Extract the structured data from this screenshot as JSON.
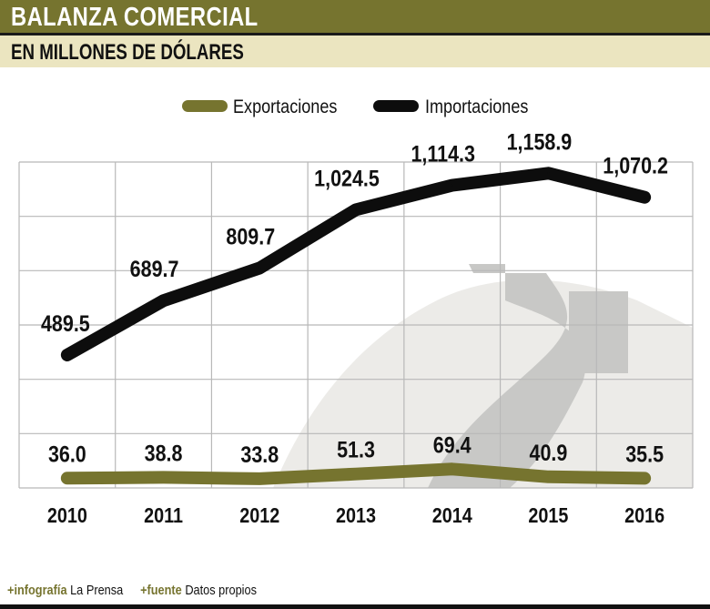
{
  "header": {
    "title": "BALANZA COMERCIAL",
    "subtitle": "EN MILLONES DE DÓLARES"
  },
  "colors": {
    "exports": "#76742f",
    "imports": "#0d0d0d",
    "title_bar": "#76742f",
    "subtitle_bar": "#ebe5c0",
    "grid": "#b8b8b8"
  },
  "chart_data": {
    "type": "line",
    "title": "BALANZA COMERCIAL",
    "subtitle": "EN MILLONES DE DÓLARES",
    "categories": [
      "2010",
      "2011",
      "2012",
      "2013",
      "2014",
      "2015",
      "2016"
    ],
    "series": [
      {
        "name": "Exportaciones",
        "color": "#76742f",
        "values": [
          36.0,
          38.8,
          33.8,
          51.3,
          69.4,
          40.9,
          35.5
        ],
        "labels": [
          "36.0",
          "38.8",
          "33.8",
          "51.3",
          "69.4",
          "40.9",
          "35.5"
        ]
      },
      {
        "name": "Importaciones",
        "color": "#0d0d0d",
        "values": [
          489.5,
          689.7,
          809.7,
          1024.5,
          1114.3,
          1158.9,
          1070.2
        ],
        "labels": [
          "489.5",
          "689.7",
          "809.7",
          "1,024.5",
          "1,114.3",
          "1,158.9",
          "1,070.2"
        ]
      }
    ],
    "ylim": [
      0,
      1200
    ],
    "grid": true,
    "legend": "top-center"
  },
  "footer": {
    "credit_label": "+infografía",
    "credit_value": "La Prensa",
    "source_label": "+fuente",
    "source_value": "Datos propios"
  }
}
